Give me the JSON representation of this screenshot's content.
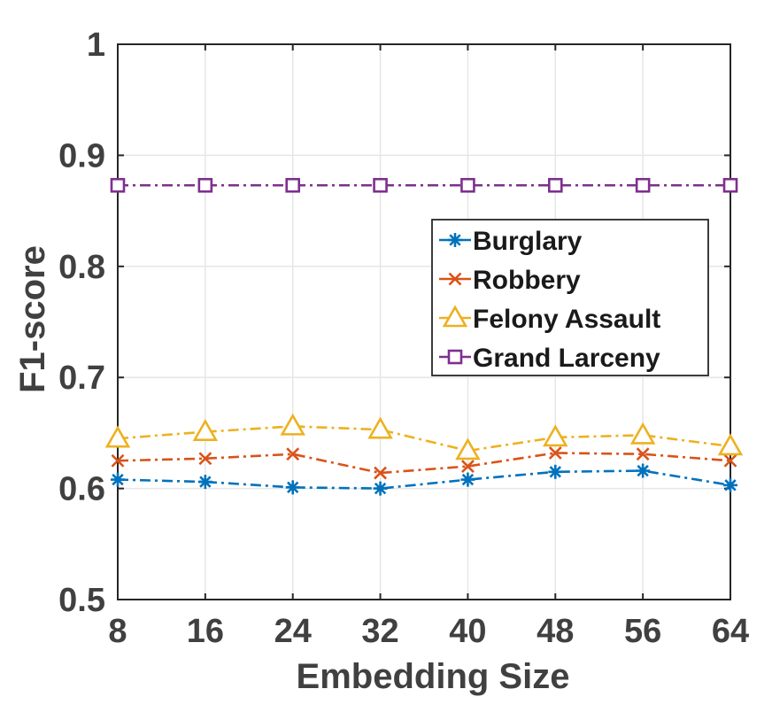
{
  "chart_data": {
    "type": "line",
    "xlabel": "Embedding Size",
    "ylabel": "F1-score",
    "x": [
      8,
      16,
      24,
      32,
      40,
      48,
      56,
      64
    ],
    "xlim": [
      8,
      64
    ],
    "ylim": [
      0.5,
      1
    ],
    "yticks": [
      0.5,
      0.6,
      0.7,
      0.8,
      0.9,
      1
    ],
    "ytick_labels": [
      "0.5",
      "0.6",
      "0.7",
      "0.8",
      "0.9",
      "1"
    ],
    "xtick_labels": [
      "8",
      "16",
      "24",
      "32",
      "40",
      "48",
      "56",
      "64"
    ],
    "grid": true,
    "legend_position": "center-right",
    "series": [
      {
        "name": "Burglary",
        "marker": "asterisk",
        "color": "#0072BD",
        "values": [
          0.608,
          0.606,
          0.601,
          0.6,
          0.608,
          0.615,
          0.616,
          0.603
        ]
      },
      {
        "name": "Robbery",
        "marker": "x",
        "color": "#D95319",
        "values": [
          0.625,
          0.627,
          0.631,
          0.614,
          0.62,
          0.632,
          0.631,
          0.625
        ]
      },
      {
        "name": "Felony Assault",
        "marker": "triangle",
        "color": "#EDB120",
        "values": [
          0.645,
          0.651,
          0.656,
          0.653,
          0.634,
          0.646,
          0.648,
          0.638
        ]
      },
      {
        "name": "Grand Larceny",
        "marker": "square",
        "color": "#7E2F8E",
        "values": [
          0.873,
          0.873,
          0.873,
          0.873,
          0.873,
          0.873,
          0.873,
          0.873
        ]
      }
    ]
  }
}
